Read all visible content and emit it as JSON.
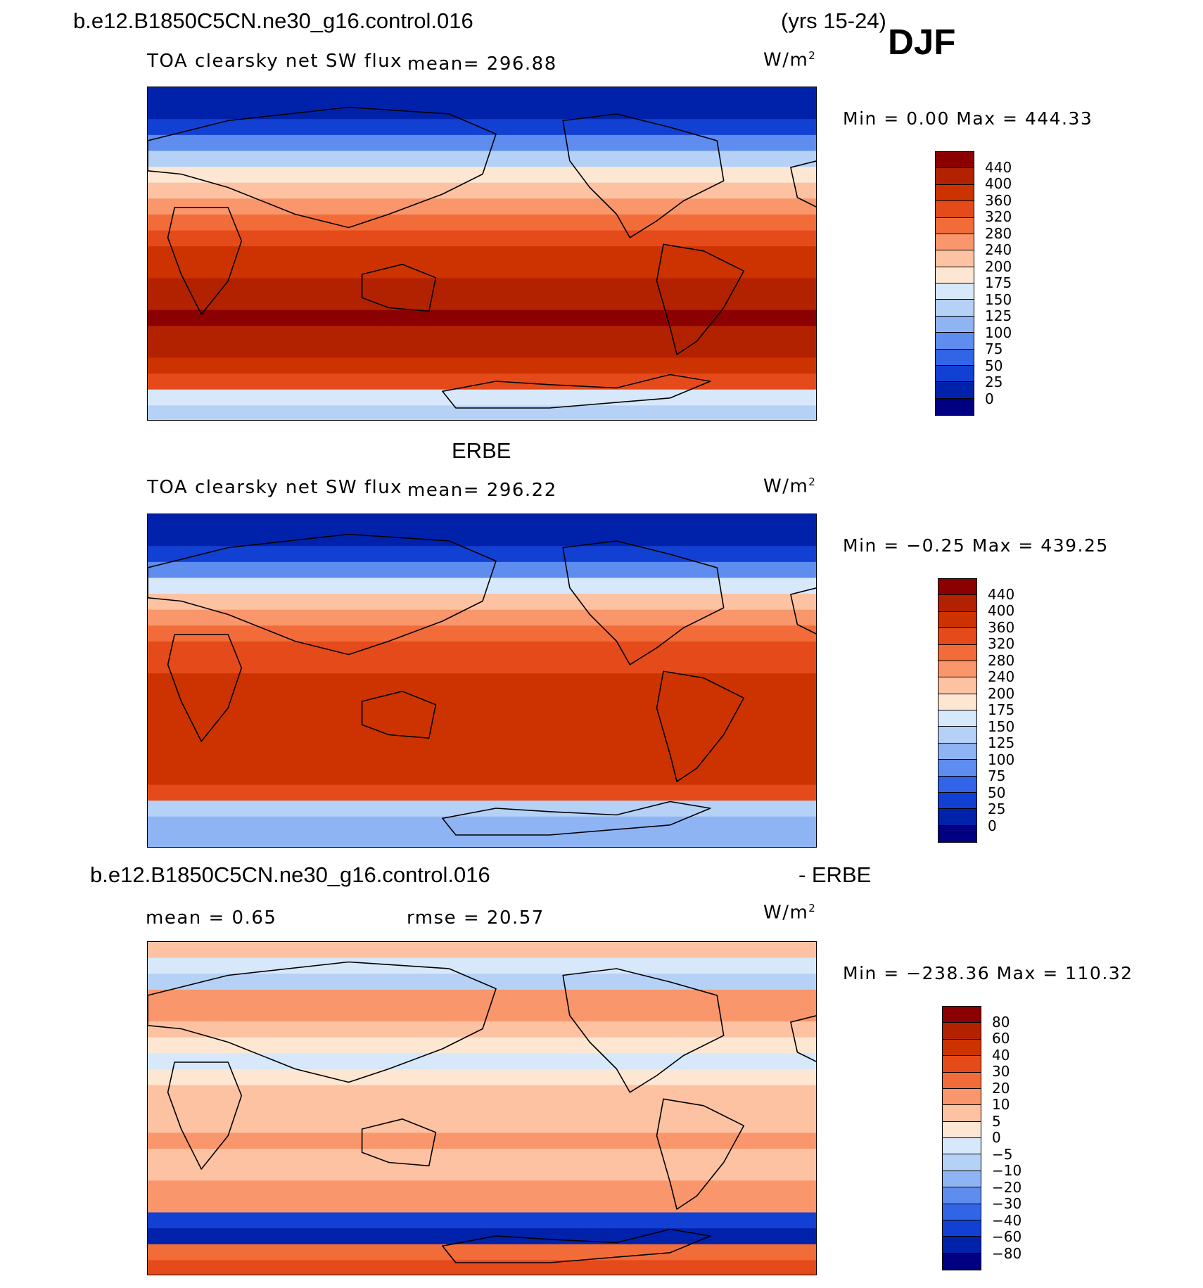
{
  "header": {
    "case_name": "b.e12.B1850C5CN.ne30_g16.control.016",
    "years": "(yrs 15-24)",
    "season": "DJF"
  },
  "panels": {
    "model": {
      "variable": "TOA clearsky net SW flux",
      "mean_label": "mean= 296.88",
      "units": "W/m",
      "units_exp": "2",
      "minmax": "Min =    0.00 Max = 444.33"
    },
    "obs": {
      "title": "ERBE",
      "variable": "TOA clearsky net SW flux",
      "mean_label": "mean= 296.22",
      "units": "W/m",
      "units_exp": "2",
      "minmax": "Min =  −0.25 Max = 439.25"
    },
    "diff": {
      "title_left": "b.e12.B1850C5CN.ne30_g16.control.016",
      "title_right": "- ERBE",
      "mean_label": "mean =    0.65",
      "rmse_label": "rmse =   20.57",
      "units": "W/m",
      "units_exp": "2",
      "minmax": "Min = −238.36 Max = 110.32"
    }
  },
  "chart_data": [
    {
      "type": "heatmap",
      "title": "TOA clearsky net SW flux",
      "projection": "cylindrical equidistant, centered on dateline",
      "mean": 296.88,
      "min": 0.0,
      "max": 444.33,
      "units": "W/m2",
      "levels": [
        "440",
        "400",
        "360",
        "320",
        "280",
        "240",
        "200",
        "175",
        "150",
        "125",
        "100",
        "75",
        "50",
        "25",
        "0"
      ],
      "colors": [
        "#8b0000",
        "#b22200",
        "#cc3300",
        "#e54a1a",
        "#f26c3a",
        "#f9966b",
        "#fcc2a2",
        "#fde6d2",
        "#d6e8fa",
        "#b6d1f6",
        "#8fb4f3",
        "#5e8cef",
        "#3264e8",
        "#1240d2",
        "#0022aa",
        "#000080"
      ],
      "zonal_band_values": [
        0,
        20,
        40,
        90,
        140,
        180,
        230,
        270,
        300,
        330,
        360,
        390,
        410,
        425,
        440,
        425,
        400,
        380,
        350,
        160,
        130
      ]
    },
    {
      "type": "heatmap",
      "title": "ERBE TOA clearsky net SW flux",
      "projection": "cylindrical equidistant, centered on dateline",
      "mean": 296.22,
      "min": -0.25,
      "max": 439.25,
      "units": "W/m2",
      "levels": [
        "440",
        "400",
        "360",
        "320",
        "280",
        "240",
        "200",
        "175",
        "150",
        "125",
        "100",
        "75",
        "50",
        "25",
        "0"
      ],
      "colors": [
        "#8b0000",
        "#b22200",
        "#cc3300",
        "#e54a1a",
        "#f26c3a",
        "#f9966b",
        "#fcc2a2",
        "#fde6d2",
        "#d6e8fa",
        "#b6d1f6",
        "#8fb4f3",
        "#5e8cef",
        "#3264e8",
        "#1240d2",
        "#0022aa",
        "#000080"
      ],
      "zonal_band_values": [
        0,
        15,
        40,
        80,
        150,
        200,
        250,
        290,
        320,
        350,
        370,
        380,
        380,
        380,
        380,
        380,
        380,
        340,
        130,
        110,
        110
      ]
    },
    {
      "type": "heatmap",
      "title": "b.e12.B1850C5CN.ne30_g16.control.016 - ERBE",
      "projection": "cylindrical equidistant, centered on dateline",
      "mean": 0.65,
      "rmse": 20.57,
      "min": -238.36,
      "max": 110.32,
      "units": "W/m2",
      "levels": [
        "80",
        "60",
        "40",
        "30",
        "20",
        "10",
        "5",
        "0",
        "−5",
        "−10",
        "−20",
        "−30",
        "−40",
        "−60",
        "−80"
      ],
      "colors": [
        "#8b0000",
        "#b22200",
        "#cc3300",
        "#e54a1a",
        "#f26c3a",
        "#f9966b",
        "#fcc2a2",
        "#fde6d2",
        "#d6e8fa",
        "#b6d1f6",
        "#8fb4f3",
        "#5e8cef",
        "#3264e8",
        "#1240d2",
        "#0022aa",
        "#000080"
      ],
      "zonal_band_values": [
        5,
        -5,
        -10,
        10,
        15,
        5,
        2,
        -3,
        4,
        6,
        8,
        8,
        10,
        8,
        6,
        10,
        15,
        -60,
        -80,
        20,
        30
      ]
    }
  ]
}
